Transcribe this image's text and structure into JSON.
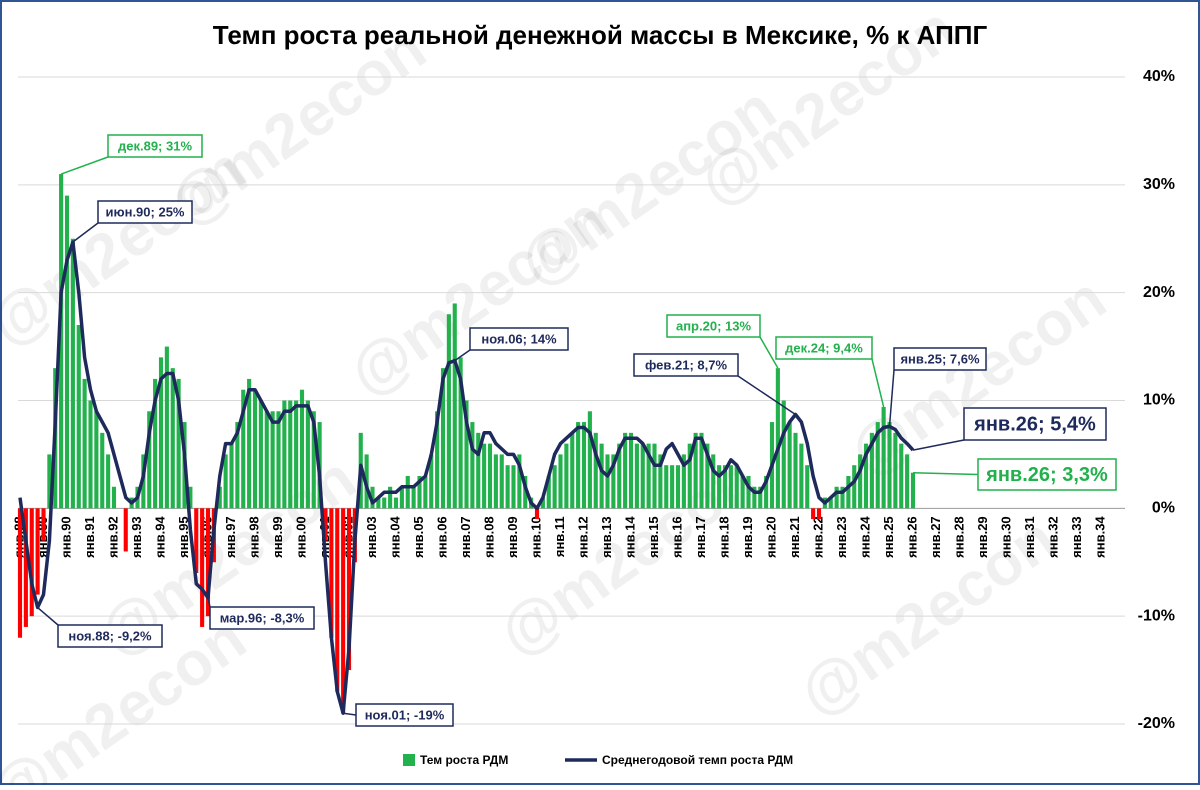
{
  "chart_data": {
    "type": "bar_line",
    "title": "Темп роста реальной денежной массы в Мексике, % к АППГ",
    "watermark": "@m2econ",
    "ylim": [
      -20,
      40
    ],
    "yticks": [
      {
        "value": 40,
        "label": "40%"
      },
      {
        "value": 30,
        "label": "30%"
      },
      {
        "value": 20,
        "label": "20%"
      },
      {
        "value": 10,
        "label": "10%"
      },
      {
        "value": 0,
        "label": "0%"
      },
      {
        "value": -10,
        "label": "-10%"
      },
      {
        "value": -20,
        "label": "-20%"
      }
    ],
    "grid": true,
    "categories": [
      "янв.88",
      null,
      null,
      null,
      "янв.89",
      null,
      null,
      null,
      "янв.90",
      null,
      null,
      null,
      "янв.91",
      null,
      null,
      null,
      "янв.92",
      null,
      null,
      null,
      "янв.93",
      null,
      null,
      null,
      "янв.94",
      null,
      null,
      null,
      "янв.95",
      null,
      null,
      null,
      "янв.96",
      null,
      null,
      null,
      "янв.97",
      null,
      null,
      null,
      "янв.98",
      null,
      null,
      null,
      "янв.99",
      null,
      null,
      null,
      "янв.00",
      null,
      null,
      null,
      "янв.01",
      null,
      null,
      null,
      "янв.02",
      null,
      null,
      null,
      "янв.03",
      null,
      null,
      null,
      "янв.04",
      null,
      null,
      null,
      "янв.05",
      null,
      null,
      null,
      "янв.06",
      null,
      null,
      null,
      "янв.07",
      null,
      null,
      null,
      "янв.08",
      null,
      null,
      null,
      "янв.09",
      null,
      null,
      null,
      "янв.10",
      null,
      null,
      null,
      "янв.11",
      null,
      null,
      null,
      "янв.12",
      null,
      null,
      null,
      "янв.13",
      null,
      null,
      null,
      "янв.14",
      null,
      null,
      null,
      "янв.15",
      null,
      null,
      null,
      "янв.16",
      null,
      null,
      null,
      "янв.17",
      null,
      null,
      null,
      "янв.18",
      null,
      null,
      null,
      "янв.19",
      null,
      null,
      null,
      "янв.20",
      null,
      null,
      null,
      "янв.21",
      null,
      null,
      null,
      "янв.22",
      null,
      null,
      null,
      "янв.23",
      null,
      null,
      null,
      "янв.24",
      null,
      null,
      null,
      "янв.25",
      null,
      null,
      null,
      "янв.26",
      null,
      null,
      null,
      "янв.27",
      null,
      null,
      null,
      "янв.28",
      null,
      null,
      null,
      "янв.29",
      null,
      null,
      null,
      "янв.30",
      null,
      null,
      null,
      "янв.31",
      null,
      null,
      null,
      "янв.32",
      null,
      null,
      null,
      "янв.33",
      null,
      null,
      null,
      "янв.34"
    ],
    "series": [
      {
        "name": "Тем роста РДМ",
        "type": "bar",
        "color": "#22b14c",
        "negative_color": "#ff0000",
        "values": [
          -12,
          -11,
          -10,
          -8,
          -3,
          5,
          13,
          31,
          29,
          25,
          17,
          12,
          10,
          9,
          7,
          5,
          2,
          0,
          -4,
          1,
          2,
          5,
          9,
          12,
          14,
          15,
          13,
          12,
          8,
          2,
          -6,
          -11,
          -10,
          -5,
          2,
          5,
          6,
          8,
          11,
          12,
          11,
          10,
          9,
          9,
          9,
          10,
          10,
          10,
          11,
          10,
          9,
          8,
          -3,
          -12,
          -17,
          -19,
          -15,
          -5,
          7,
          5,
          2,
          1,
          1,
          2,
          1,
          2,
          3,
          2,
          3,
          3,
          5,
          9,
          13,
          18,
          19,
          14,
          10,
          8,
          7,
          6,
          6,
          5,
          5,
          4,
          4,
          5,
          3,
          1,
          -1,
          1,
          3,
          4,
          5,
          6,
          7,
          8,
          8,
          9,
          7,
          6,
          5,
          5,
          6,
          7,
          7,
          6,
          6,
          6,
          6,
          5,
          4,
          4,
          4,
          5,
          6,
          7,
          7,
          6,
          5,
          4,
          4,
          4,
          4,
          3,
          3,
          2,
          2,
          3,
          8,
          13,
          10,
          8,
          7,
          6,
          4,
          -1,
          -1,
          1,
          1,
          2,
          2,
          3,
          4,
          5,
          6,
          7,
          8,
          9.4,
          8,
          7,
          6,
          5,
          3.3,
          null,
          null,
          null,
          null,
          null,
          null,
          null,
          null,
          null,
          null,
          null,
          null,
          null,
          null,
          null,
          null,
          null,
          null,
          null,
          null,
          null,
          null,
          null,
          null,
          null,
          null,
          null,
          null,
          null,
          null,
          null,
          null
        ]
      },
      {
        "name": "Среднегодовой темп роста РДМ",
        "type": "line",
        "color": "#1f2a5c",
        "values": [
          1,
          -3,
          -7,
          -9.2,
          -8,
          -3,
          8,
          20,
          23,
          24.7,
          20,
          14,
          11,
          9,
          8,
          7,
          5,
          3,
          1,
          0.5,
          1,
          3,
          7,
          10,
          12,
          12.5,
          12.5,
          10,
          5,
          -2,
          -7,
          -7.5,
          -8.3,
          -2,
          3,
          6,
          6,
          7,
          9,
          11,
          11,
          10,
          9,
          8,
          8,
          9,
          9,
          9.5,
          9.5,
          9.5,
          8,
          3,
          -5,
          -12,
          -17,
          -19,
          -13,
          -3,
          4,
          2,
          0.5,
          1,
          1.5,
          1.5,
          1.5,
          2,
          2,
          2,
          2.5,
          3,
          5,
          8,
          12,
          13.5,
          13.7,
          12,
          8,
          5.5,
          5,
          7,
          7,
          6,
          5.5,
          5,
          5,
          4,
          2,
          0.5,
          0,
          1,
          3,
          5,
          6,
          6.5,
          7,
          7.5,
          7.5,
          7,
          5,
          3.5,
          3,
          4,
          5.5,
          6.5,
          6.5,
          6.5,
          6,
          5,
          4,
          4,
          5.5,
          6,
          5,
          4,
          4.5,
          6.5,
          6.5,
          5,
          3.5,
          3,
          3.5,
          4.5,
          4,
          3,
          2,
          1.5,
          1.5,
          2.5,
          4,
          5.5,
          7,
          8,
          8.7,
          8,
          6,
          3,
          1,
          0.5,
          1,
          1.5,
          1.5,
          2,
          2.5,
          3.5,
          5,
          6,
          7,
          7.5,
          7.6,
          7.3,
          6.5,
          6,
          5.4,
          null,
          null,
          null,
          null,
          null,
          null,
          null,
          null,
          null,
          null,
          null,
          null,
          null,
          null,
          null,
          null,
          null,
          null,
          null,
          null,
          null,
          null,
          null,
          null,
          null,
          null,
          null,
          null,
          null,
          null,
          null,
          null
        ]
      }
    ],
    "annotations": [
      {
        "text": "дек.89; 31%",
        "color": "#22b14c"
      },
      {
        "text": "июн.90; 25%",
        "color": "#1f2a5c"
      },
      {
        "text": "ноя.88; -9,2%",
        "color": "#1f2a5c"
      },
      {
        "text": "мар.96; -8,3%",
        "color": "#1f2a5c"
      },
      {
        "text": "ноя.01; -19%",
        "color": "#1f2a5c"
      },
      {
        "text": "ноя.06; 14%",
        "color": "#1f2a5c"
      },
      {
        "text": "апр.20; 13%",
        "color": "#22b14c"
      },
      {
        "text": "фев.21; 8,7%",
        "color": "#1f2a5c"
      },
      {
        "text": "дек.24; 9,4%",
        "color": "#22b14c"
      },
      {
        "text": "янв.25; 7,6%",
        "color": "#1f2a5c"
      },
      {
        "text": "янв.26; 5,4%",
        "color": "#1f2a5c"
      },
      {
        "text": "янв.26; 3,3%",
        "color": "#22b14c"
      }
    ]
  }
}
